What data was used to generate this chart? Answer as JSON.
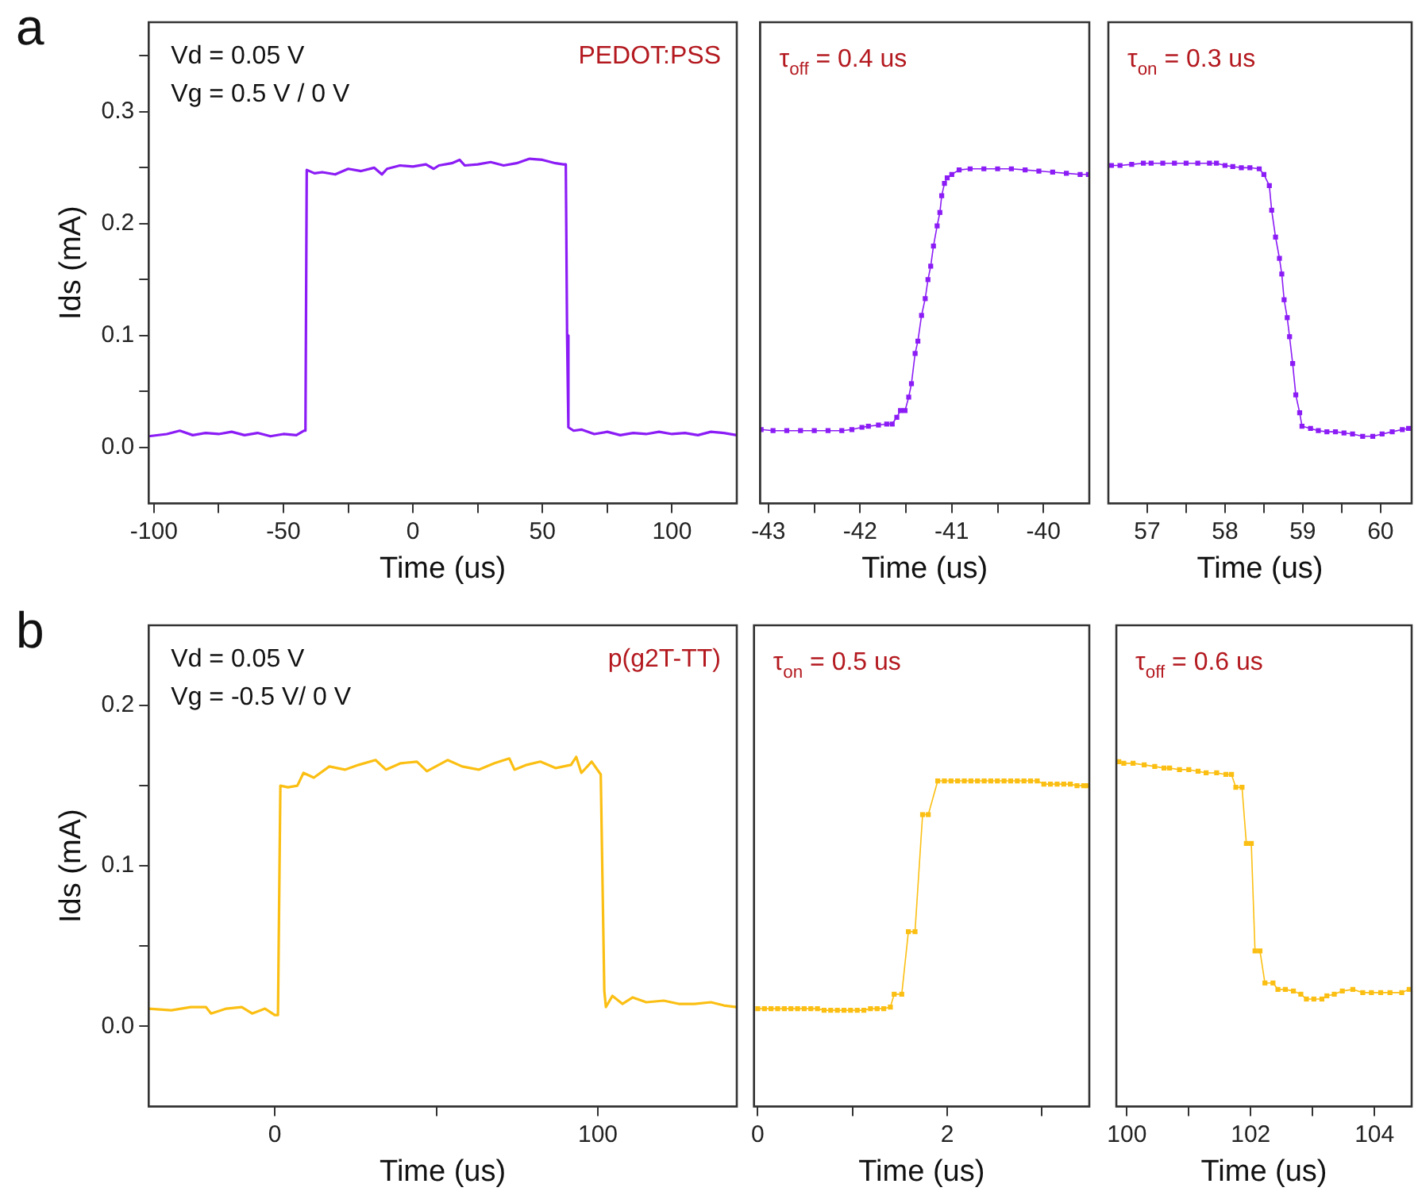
{
  "chart_data": [
    {
      "type": "line",
      "title": "a",
      "subtitle": "PEDOT:PSS",
      "xlabel": "Time (us)",
      "ylabel": "Ids (mA)",
      "annotations": [
        "Vd = 0.05 V",
        "Vg = 0.5 V / 0 V"
      ],
      "xlim": [
        -102,
        125
      ],
      "xticks": [
        -100,
        {
          "value": -75,
          "label": null
        },
        -50,
        {
          "value": -25,
          "label": null
        },
        0,
        {
          "value": 25,
          "label": null
        },
        50,
        {
          "value": 75,
          "label": null
        },
        100
      ],
      "ylim": [
        -0.05,
        0.38
      ],
      "yticks": [
        {
          "value": 0,
          "label": "0.0"
        },
        {
          "value": 0.05,
          "label": null
        },
        0.1,
        {
          "value": 0.15,
          "label": null
        },
        0.2,
        {
          "value": 0.25,
          "label": null
        },
        0.3,
        {
          "value": 0.35,
          "label": null
        }
      ],
      "grid": false,
      "legend": false,
      "series": [
        {
          "color": "#8b1cf5",
          "x": [
            -102,
            -95,
            -90,
            -85,
            -80,
            -75,
            -70,
            -65,
            -60,
            -55,
            -50,
            -45,
            -42,
            -41.5,
            -41,
            -38,
            -35,
            -30,
            -25,
            -20,
            -15,
            -12,
            -10,
            -5,
            0,
            5,
            8,
            10,
            15,
            18,
            20,
            25,
            30,
            35,
            40,
            45,
            50,
            55,
            58,
            59,
            59.5,
            60,
            62,
            65,
            70,
            75,
            80,
            85,
            90,
            95,
            100,
            105,
            110,
            115,
            120,
            125
          ],
          "values": [
            0.01,
            0.012,
            0.015,
            0.011,
            0.013,
            0.012,
            0.014,
            0.011,
            0.013,
            0.01,
            0.012,
            0.011,
            0.015,
            0.015,
            0.248,
            0.245,
            0.246,
            0.244,
            0.249,
            0.247,
            0.25,
            0.244,
            0.249,
            0.252,
            0.251,
            0.253,
            0.249,
            0.252,
            0.254,
            0.257,
            0.252,
            0.253,
            0.255,
            0.252,
            0.254,
            0.258,
            0.257,
            0.254,
            0.253,
            0.253,
            0.1,
            0.018,
            0.015,
            0.016,
            0.012,
            0.014,
            0.011,
            0.013,
            0.012,
            0.014,
            0.012,
            0.013,
            0.011,
            0.014,
            0.013,
            0.011
          ]
        }
      ]
    },
    {
      "type": "line",
      "subtitle": "τ$_{off}$ = 0.4 us",
      "xlabel": "Time (us)",
      "xlim": [
        -43.09,
        -39.5
      ],
      "xticks": [
        -43,
        {
          "value": -42.5,
          "label": null
        },
        -42,
        {
          "value": -41.5,
          "label": null
        },
        -41,
        {
          "value": -40.5,
          "label": null
        },
        -40
      ],
      "ylim": [
        -0.05,
        0.38
      ],
      "tick_labels": "x",
      "grid": false,
      "legend": false,
      "marker": "square",
      "series": [
        {
          "color": "#8b1cf5",
          "x": [
            -43.08,
            -42.95,
            -42.8,
            -42.65,
            -42.5,
            -42.35,
            -42.2,
            -42.09,
            -41.98,
            -41.91,
            -41.8,
            -41.71,
            -41.65,
            -41.6,
            -41.56,
            -41.51,
            -41.47,
            -41.44,
            -41.4,
            -41.37,
            -41.33,
            -41.29,
            -41.26,
            -41.23,
            -41.2,
            -41.16,
            -41.13,
            -41.11,
            -41.08,
            -41.05,
            -41.0,
            -40.92,
            -40.8,
            -40.65,
            -40.5,
            -40.35,
            -40.2,
            -40.05,
            -39.9,
            -39.75,
            -39.6,
            -39.51
          ],
          "values": [
            0.016,
            0.015,
            0.015,
            0.015,
            0.015,
            0.015,
            0.015,
            0.016,
            0.018,
            0.019,
            0.02,
            0.021,
            0.021,
            0.027,
            0.033,
            0.033,
            0.045,
            0.057,
            0.084,
            0.095,
            0.118,
            0.133,
            0.15,
            0.162,
            0.18,
            0.198,
            0.21,
            0.225,
            0.236,
            0.241,
            0.244,
            0.248,
            0.249,
            0.249,
            0.249,
            0.249,
            0.248,
            0.247,
            0.246,
            0.245,
            0.244,
            0.244
          ]
        }
      ]
    },
    {
      "type": "line",
      "subtitle": "τ$_{on}$ = 0.3 us",
      "xlabel": "Time (us)",
      "xlim": [
        56.5,
        60.4
      ],
      "xticks": [
        57,
        {
          "value": 57.5,
          "label": null
        },
        58,
        {
          "value": 58.5,
          "label": null
        },
        59,
        {
          "value": 59.5,
          "label": null
        },
        60
      ],
      "ylim": [
        -0.05,
        0.38
      ],
      "tick_labels": "x",
      "grid": false,
      "legend": false,
      "marker": "square",
      "series": [
        {
          "color": "#8b1cf5",
          "x": [
            56.54,
            56.65,
            56.8,
            56.95,
            57.05,
            57.2,
            57.35,
            57.5,
            57.65,
            57.8,
            57.89,
            58.0,
            58.1,
            58.21,
            58.32,
            58.44,
            58.5,
            58.57,
            58.6,
            58.65,
            58.7,
            58.73,
            58.76,
            58.8,
            58.83,
            58.87,
            58.91,
            58.96,
            58.99,
            59.1,
            59.2,
            59.31,
            59.42,
            59.53,
            59.64,
            59.77,
            59.9,
            60.02,
            60.15,
            60.28,
            60.36
          ],
          "values": [
            0.252,
            0.252,
            0.253,
            0.254,
            0.254,
            0.254,
            0.254,
            0.254,
            0.254,
            0.254,
            0.254,
            0.252,
            0.251,
            0.25,
            0.25,
            0.249,
            0.244,
            0.234,
            0.212,
            0.188,
            0.169,
            0.155,
            0.132,
            0.116,
            0.099,
            0.075,
            0.047,
            0.031,
            0.019,
            0.017,
            0.015,
            0.014,
            0.014,
            0.013,
            0.012,
            0.01,
            0.01,
            0.012,
            0.014,
            0.016,
            0.017
          ]
        }
      ]
    },
    {
      "type": "line",
      "title": "b",
      "subtitle": "p(g2T-TT)",
      "xlabel": "Time (us)",
      "ylabel": "Ids (mA)",
      "annotations": [
        "Vd = 0.05 V",
        "Vg = -0.5 V/ 0 V"
      ],
      "xlim": [
        -39,
        143
      ],
      "xticks": [
        0,
        {
          "value": 50,
          "label": null
        },
        100
      ],
      "ylim": [
        -0.05,
        0.25
      ],
      "yticks": [
        {
          "value": 0,
          "label": "0.0"
        },
        {
          "value": 0.05,
          "label": null
        },
        0.1,
        {
          "value": 0.15,
          "label": null
        },
        0.2
      ],
      "grid": false,
      "legend": false,
      "series": [
        {
          "color": "#fbbf13",
          "x": [
            -39,
            -32,
            -26,
            -21.3,
            -19.7,
            -15,
            -10.2,
            -7,
            -3,
            0,
            1,
            1.75,
            4.1,
            7,
            8.9,
            12.1,
            16.9,
            21.7,
            26,
            31.2,
            34.4,
            39,
            44,
            47.1,
            53.5,
            58,
            63.1,
            68,
            72.6,
            74.2,
            78,
            82.2,
            87,
            91.7,
            93.3,
            94.9,
            98.1,
            100.9,
            102,
            102.5,
            104.5,
            107.6,
            110.8,
            115,
            120.4,
            125,
            129.9,
            135,
            139,
            143
          ],
          "values": [
            0.011,
            0.01,
            0.012,
            0.012,
            0.008,
            0.011,
            0.012,
            0.008,
            0.011,
            0.007,
            0.007,
            0.15,
            0.149,
            0.15,
            0.158,
            0.155,
            0.162,
            0.16,
            0.163,
            0.166,
            0.16,
            0.164,
            0.165,
            0.159,
            0.166,
            0.162,
            0.16,
            0.164,
            0.167,
            0.16,
            0.163,
            0.165,
            0.161,
            0.163,
            0.168,
            0.158,
            0.165,
            0.157,
            0.022,
            0.012,
            0.019,
            0.014,
            0.018,
            0.015,
            0.016,
            0.014,
            0.014,
            0.015,
            0.013,
            0.012
          ]
        }
      ]
    },
    {
      "type": "line",
      "subtitle": "τ$_{on}$ = 0.5 us",
      "xlabel": "Time (us)",
      "xlim": [
        -0.04,
        3.5
      ],
      "xticks": [
        0,
        {
          "value": 1,
          "label": null
        },
        2,
        {
          "value": 3,
          "label": null
        }
      ],
      "ylim": [
        -0.05,
        0.25
      ],
      "tick_labels": "x",
      "grid": false,
      "legend": false,
      "marker": "square",
      "series": [
        {
          "color": "#fbbf13",
          "x": [
            0,
            0.07,
            0.14,
            0.21,
            0.28,
            0.35,
            0.42,
            0.49,
            0.56,
            0.63,
            0.7,
            0.77,
            0.84,
            0.91,
            0.98,
            1.05,
            1.12,
            1.19,
            1.26,
            1.33,
            1.4,
            1.44,
            1.52,
            1.59,
            1.66,
            1.74,
            1.8,
            1.9,
            1.97,
            2.04,
            2.11,
            2.18,
            2.25,
            2.32,
            2.39,
            2.46,
            2.53,
            2.6,
            2.67,
            2.74,
            2.81,
            2.88,
            2.95,
            3.02,
            3.09,
            3.16,
            3.23,
            3.3,
            3.37,
            3.44,
            3.48
          ],
          "values": [
            0.011,
            0.011,
            0.011,
            0.011,
            0.011,
            0.011,
            0.011,
            0.011,
            0.011,
            0.011,
            0.01,
            0.01,
            0.01,
            0.01,
            0.01,
            0.01,
            0.01,
            0.011,
            0.011,
            0.011,
            0.012,
            0.02,
            0.02,
            0.059,
            0.059,
            0.132,
            0.132,
            0.153,
            0.153,
            0.153,
            0.153,
            0.153,
            0.153,
            0.153,
            0.153,
            0.153,
            0.153,
            0.153,
            0.153,
            0.153,
            0.153,
            0.153,
            0.153,
            0.151,
            0.151,
            0.151,
            0.151,
            0.151,
            0.15,
            0.15,
            0.15
          ]
        }
      ]
    },
    {
      "type": "line",
      "subtitle": "τ$_{off}$ = 0.6 us",
      "xlabel": "Time (us)",
      "xlim": [
        99.83,
        104.6
      ],
      "xticks": [
        100,
        {
          "value": 101,
          "label": null
        },
        102,
        {
          "value": 103,
          "label": null
        },
        104
      ],
      "ylim": [
        -0.05,
        0.25
      ],
      "tick_labels": "x",
      "grid": false,
      "legend": false,
      "marker": "square",
      "series": [
        {
          "color": "#fbbf13",
          "x": [
            99.87,
            99.95,
            100.1,
            100.28,
            100.45,
            100.6,
            100.69,
            100.85,
            101.0,
            101.15,
            101.28,
            101.45,
            101.6,
            101.69,
            101.76,
            101.86,
            101.93,
            102.01,
            102.07,
            102.15,
            102.23,
            102.36,
            102.44,
            102.56,
            102.69,
            102.81,
            102.9,
            103.02,
            103.15,
            103.23,
            103.35,
            103.48,
            103.65,
            103.81,
            103.95,
            104.1,
            104.25,
            104.44,
            104.56
          ],
          "values": [
            0.165,
            0.164,
            0.164,
            0.163,
            0.162,
            0.161,
            0.161,
            0.16,
            0.16,
            0.159,
            0.158,
            0.158,
            0.157,
            0.157,
            0.149,
            0.149,
            0.114,
            0.114,
            0.047,
            0.047,
            0.027,
            0.027,
            0.023,
            0.023,
            0.022,
            0.02,
            0.017,
            0.017,
            0.017,
            0.019,
            0.02,
            0.022,
            0.023,
            0.021,
            0.021,
            0.021,
            0.021,
            0.021,
            0.023
          ]
        }
      ]
    }
  ]
}
